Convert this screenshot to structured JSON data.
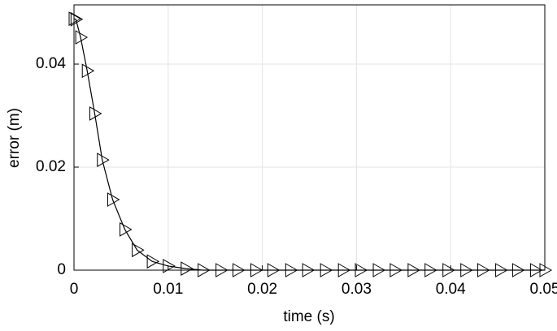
{
  "chart_data": {
    "type": "line",
    "x_label": "time (s)",
    "y_label": "error (m)",
    "x": [
      0,
      0.0002,
      0.0007,
      0.0014,
      0.0022,
      0.003,
      0.0041,
      0.0054,
      0.0067,
      0.0083,
      0.01,
      0.0119,
      0.0137,
      0.0156,
      0.0174,
      0.0193,
      0.0211,
      0.023,
      0.0248,
      0.0267,
      0.0286,
      0.0304,
      0.0323,
      0.0341,
      0.036,
      0.0378,
      0.0397,
      0.0416,
      0.0434,
      0.0453,
      0.0471,
      0.049,
      0.05
    ],
    "series": [
      {
        "color": "#000000",
        "marker": "triangle-right",
        "values": [
          0.0488,
          0.0487,
          0.0452,
          0.0387,
          0.0304,
          0.0214,
          0.0137,
          0.0079,
          0.0039,
          0.0017,
          0.0008,
          0.0003,
          0,
          0,
          0,
          0,
          0,
          0,
          0,
          0,
          0,
          0,
          0,
          0,
          0,
          0,
          0,
          0,
          0,
          0,
          0,
          0,
          0
        ]
      }
    ],
    "xlim": [
      0,
      0.05
    ],
    "ylim": [
      0,
      0.0515
    ],
    "xticks": [
      0,
      0.01,
      0.02,
      0.03,
      0.04,
      0.05
    ],
    "yticks": [
      0,
      0.02,
      0.04
    ],
    "grid": true
  }
}
